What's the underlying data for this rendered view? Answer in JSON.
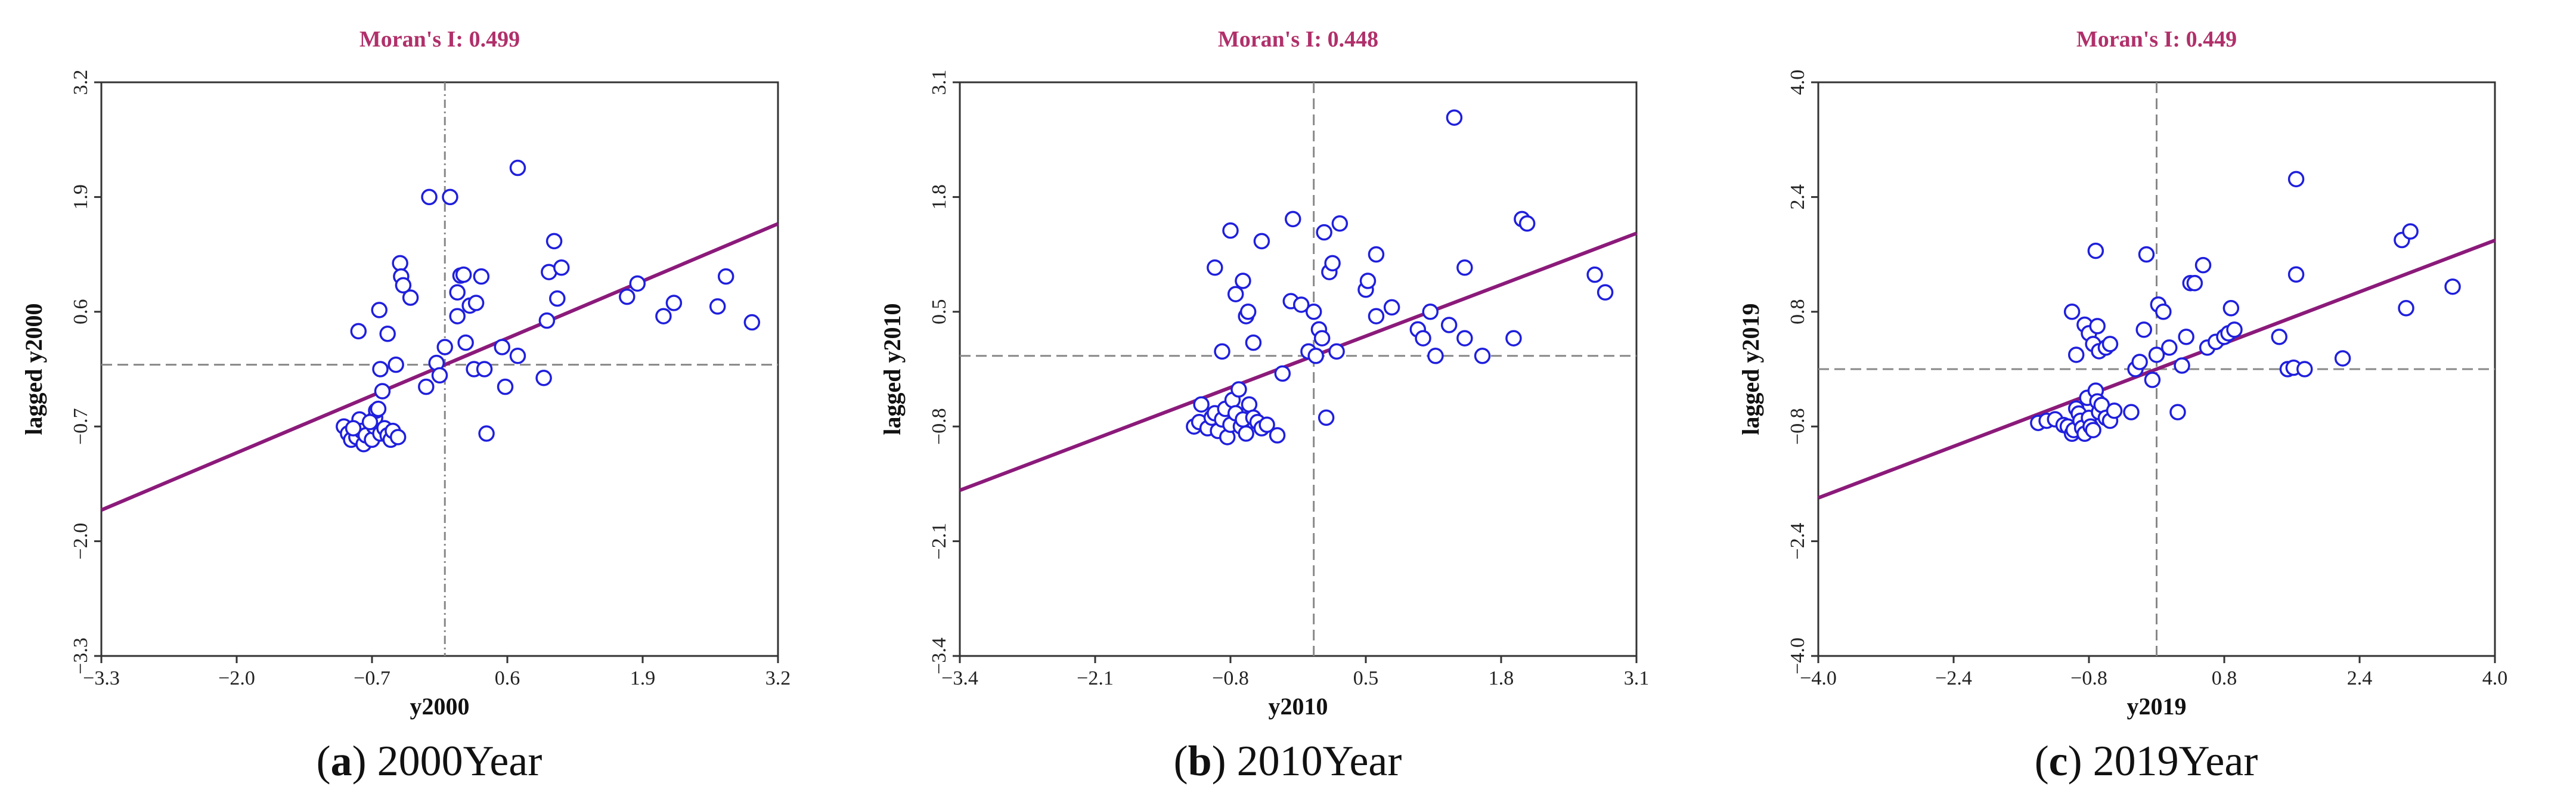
{
  "chart_data": [
    {
      "type": "scatter",
      "panel_tag": "a",
      "panel_title": "2000Year",
      "moran_label": "Moran's I:",
      "moran_value": "0.499",
      "xlabel": "y2000",
      "ylabel": "lagged  y2000",
      "xlim": [
        -3.3,
        3.2
      ],
      "ylim": [
        -3.3,
        3.2
      ],
      "xticks": [
        -3.3,
        -2.0,
        -0.7,
        0.6,
        1.9,
        3.2
      ],
      "yticks": [
        -3.3,
        -2.0,
        -0.7,
        0.6,
        1.9,
        3.2
      ],
      "xtick_labels": [
        "−3.3",
        "−2.0",
        "−0.7",
        "0.6",
        "1.9",
        "3.2"
      ],
      "ytick_labels": [
        "−3.3",
        "−2.0",
        "−0.7",
        "0.6",
        "1.9",
        "3.2"
      ],
      "mean_x": 0.0,
      "mean_y": 0.0,
      "fit": {
        "slope": 0.499,
        "intercept": 0.0
      },
      "colors": {
        "points": "#1f1fdd",
        "fit": "#8b1a7a",
        "ref": "#888888"
      },
      "points": [
        [
          -0.97,
          -0.7
        ],
        [
          -0.93,
          -0.78
        ],
        [
          -0.9,
          -0.85
        ],
        [
          -0.85,
          -0.82
        ],
        [
          -0.82,
          -0.62
        ],
        [
          -0.8,
          -0.75
        ],
        [
          -0.78,
          -0.9
        ],
        [
          -0.76,
          -0.8
        ],
        [
          -0.7,
          -0.85
        ],
        [
          -0.68,
          -0.7
        ],
        [
          -0.67,
          -0.6
        ],
        [
          -0.66,
          -0.52
        ],
        [
          -0.64,
          -0.5
        ],
        [
          -0.62,
          -0.78
        ],
        [
          -0.58,
          -0.72
        ],
        [
          -0.55,
          -0.8
        ],
        [
          -0.52,
          -0.85
        ],
        [
          -0.5,
          -0.75
        ],
        [
          -0.45,
          -0.82
        ],
        [
          -0.88,
          -0.72
        ],
        [
          -0.72,
          -0.65
        ],
        [
          -0.6,
          -0.3
        ],
        [
          -0.62,
          -0.05
        ],
        [
          -0.47,
          0.0
        ],
        [
          -0.83,
          0.38
        ],
        [
          -0.63,
          0.62
        ],
        [
          -0.55,
          0.35
        ],
        [
          -0.43,
          1.15
        ],
        [
          -0.42,
          1.0
        ],
        [
          -0.4,
          0.9
        ],
        [
          -0.33,
          0.76
        ],
        [
          -0.18,
          -0.25
        ],
        [
          -0.08,
          0.02
        ],
        [
          -0.05,
          -0.12
        ],
        [
          0.0,
          0.2
        ],
        [
          0.05,
          1.9
        ],
        [
          -0.15,
          1.9
        ],
        [
          0.12,
          0.82
        ],
        [
          0.15,
          1.01
        ],
        [
          0.18,
          1.02
        ],
        [
          0.2,
          0.25
        ],
        [
          0.24,
          0.67
        ],
        [
          0.28,
          -0.05
        ],
        [
          0.3,
          0.7
        ],
        [
          0.35,
          1.0
        ],
        [
          0.38,
          -0.05
        ],
        [
          0.4,
          -0.78
        ],
        [
          0.12,
          0.55
        ],
        [
          0.55,
          0.2
        ],
        [
          0.58,
          -0.25
        ],
        [
          0.7,
          2.23
        ],
        [
          0.7,
          0.1
        ],
        [
          0.95,
          -0.15
        ],
        [
          0.98,
          0.5
        ],
        [
          1.0,
          1.05
        ],
        [
          1.05,
          1.4
        ],
        [
          1.08,
          0.75
        ],
        [
          1.12,
          1.1
        ],
        [
          1.75,
          0.77
        ],
        [
          1.85,
          0.92
        ],
        [
          2.1,
          0.55
        ],
        [
          2.2,
          0.7
        ],
        [
          2.62,
          0.66
        ],
        [
          2.7,
          1.0
        ],
        [
          2.95,
          0.48
        ]
      ]
    },
    {
      "type": "scatter",
      "panel_tag": "b",
      "panel_title": "2010Year",
      "moran_label": "Moran's I:",
      "moran_value": "0.448",
      "xlabel": "y2010",
      "ylabel": "lagged  y2010",
      "xlim": [
        -3.4,
        3.1
      ],
      "ylim": [
        -3.4,
        3.1
      ],
      "xticks": [
        -3.4,
        -2.1,
        -0.8,
        0.5,
        1.8,
        3.1
      ],
      "yticks": [
        -3.4,
        -2.1,
        -0.8,
        0.5,
        1.8,
        3.1
      ],
      "xtick_labels": [
        "−3.4",
        "−2.1",
        "−0.8",
        "0.5",
        "1.8",
        "3.1"
      ],
      "ytick_labels": [
        "−3.4",
        "−2.1",
        "−0.8",
        "0.5",
        "1.8",
        "3.1"
      ],
      "mean_x": 0.0,
      "mean_y": 0.0,
      "fit": {
        "slope": 0.448,
        "intercept": 0.0
      },
      "colors": {
        "points": "#1f1fdd",
        "fit": "#8b1a7a",
        "ref": "#888888"
      },
      "points": [
        [
          -1.15,
          -0.8
        ],
        [
          -1.1,
          -0.75
        ],
        [
          -1.08,
          -0.55
        ],
        [
          -1.02,
          -0.82
        ],
        [
          -0.98,
          -0.7
        ],
        [
          -0.95,
          -0.65
        ],
        [
          -0.92,
          -0.85
        ],
        [
          -0.88,
          -0.72
        ],
        [
          -0.85,
          -0.6
        ],
        [
          -0.83,
          -0.92
        ],
        [
          -0.8,
          -0.78
        ],
        [
          -0.78,
          -0.5
        ],
        [
          -0.75,
          -0.65
        ],
        [
          -0.72,
          -0.38
        ],
        [
          -0.7,
          -0.8
        ],
        [
          -0.68,
          -0.72
        ],
        [
          -0.65,
          -0.88
        ],
        [
          -0.62,
          -0.55
        ],
        [
          -0.58,
          -0.7
        ],
        [
          -0.54,
          -0.75
        ],
        [
          -0.5,
          -0.82
        ],
        [
          -0.45,
          -0.78
        ],
        [
          -0.35,
          -0.9
        ],
        [
          -0.3,
          -0.2
        ],
        [
          -0.22,
          0.62
        ],
        [
          -0.95,
          1.0
        ],
        [
          -0.88,
          0.05
        ],
        [
          -0.8,
          1.42
        ],
        [
          -0.75,
          0.7
        ],
        [
          -0.68,
          0.85
        ],
        [
          -0.65,
          0.45
        ],
        [
          -0.63,
          0.5
        ],
        [
          -0.58,
          0.15
        ],
        [
          -0.5,
          1.3
        ],
        [
          -0.2,
          1.55
        ],
        [
          -0.12,
          0.58
        ],
        [
          -0.05,
          0.05
        ],
        [
          0.0,
          0.5
        ],
        [
          0.02,
          0.0
        ],
        [
          0.05,
          0.3
        ],
        [
          0.08,
          0.2
        ],
        [
          0.1,
          1.4
        ],
        [
          0.15,
          0.95
        ],
        [
          0.18,
          1.05
        ],
        [
          0.22,
          0.05
        ],
        [
          0.25,
          1.5
        ],
        [
          0.12,
          -0.7
        ],
        [
          0.5,
          0.75
        ],
        [
          0.52,
          0.85
        ],
        [
          0.6,
          1.15
        ],
        [
          0.6,
          0.45
        ],
        [
          0.75,
          0.55
        ],
        [
          1.0,
          0.3
        ],
        [
          1.05,
          0.2
        ],
        [
          1.12,
          0.5
        ],
        [
          1.17,
          0.0
        ],
        [
          1.3,
          0.35
        ],
        [
          1.35,
          2.7
        ],
        [
          1.45,
          1.0
        ],
        [
          1.45,
          0.2
        ],
        [
          1.62,
          0.0
        ],
        [
          1.92,
          0.2
        ],
        [
          2.0,
          1.55
        ],
        [
          2.05,
          1.5
        ],
        [
          2.7,
          0.92
        ],
        [
          2.8,
          0.72
        ]
      ]
    },
    {
      "type": "scatter",
      "panel_tag": "c",
      "panel_title": "2019Year",
      "moran_label": "Moran's I:",
      "moran_value": "0.449",
      "xlabel": "y2019",
      "ylabel": "lagged  y2019",
      "xlim": [
        -4.0,
        4.0
      ],
      "ylim": [
        -4.0,
        4.0
      ],
      "xticks": [
        -4.0,
        -2.4,
        -0.8,
        0.8,
        2.4,
        4.0
      ],
      "yticks": [
        -4.0,
        -2.4,
        -0.8,
        0.8,
        2.4,
        4.0
      ],
      "xtick_labels": [
        "−4.0",
        "−2.4",
        "−0.8",
        "0.8",
        "2.4",
        "4.0"
      ],
      "ytick_labels": [
        "−4.0",
        "−2.4",
        "−0.8",
        "0.8",
        "2.4",
        "4.0"
      ],
      "mean_x": 0.0,
      "mean_y": 0.0,
      "fit": {
        "slope": 0.449,
        "intercept": 0.0
      },
      "colors": {
        "points": "#1f1fdd",
        "fit": "#8b1a7a",
        "ref": "#888888"
      },
      "points": [
        [
          -1.4,
          -0.75
        ],
        [
          -1.3,
          -0.72
        ],
        [
          -1.2,
          -0.7
        ],
        [
          -1.1,
          -0.78
        ],
        [
          -1.05,
          -0.8
        ],
        [
          -1.0,
          -0.9
        ],
        [
          -0.98,
          -0.85
        ],
        [
          -0.95,
          -0.55
        ],
        [
          -0.92,
          -0.62
        ],
        [
          -0.9,
          -0.72
        ],
        [
          -0.88,
          -0.82
        ],
        [
          -0.85,
          -0.9
        ],
        [
          -0.82,
          -0.4
        ],
        [
          -0.8,
          -0.68
        ],
        [
          -0.78,
          -0.8
        ],
        [
          -0.75,
          -0.85
        ],
        [
          -0.72,
          -0.3
        ],
        [
          -0.7,
          -0.45
        ],
        [
          -0.68,
          -0.6
        ],
        [
          -0.65,
          -0.5
        ],
        [
          -0.6,
          -0.68
        ],
        [
          -0.55,
          -0.72
        ],
        [
          -0.5,
          -0.58
        ],
        [
          -0.3,
          -0.6
        ],
        [
          -1.0,
          0.8
        ],
        [
          -0.95,
          0.2
        ],
        [
          -0.85,
          0.62
        ],
        [
          -0.8,
          0.5
        ],
        [
          -0.75,
          0.35
        ],
        [
          -0.72,
          1.65
        ],
        [
          -0.7,
          0.6
        ],
        [
          -0.68,
          0.25
        ],
        [
          -0.6,
          0.3
        ],
        [
          -0.55,
          0.35
        ],
        [
          -0.25,
          0.0
        ],
        [
          -0.2,
          0.1
        ],
        [
          -0.15,
          0.55
        ],
        [
          -0.12,
          1.6
        ],
        [
          -0.05,
          -0.15
        ],
        [
          0.0,
          0.2
        ],
        [
          0.02,
          0.9
        ],
        [
          0.08,
          0.8
        ],
        [
          0.15,
          0.3
        ],
        [
          0.25,
          -0.6
        ],
        [
          0.3,
          0.05
        ],
        [
          0.35,
          0.45
        ],
        [
          0.4,
          1.2
        ],
        [
          0.45,
          1.2
        ],
        [
          0.55,
          1.45
        ],
        [
          0.6,
          0.3
        ],
        [
          0.7,
          0.38
        ],
        [
          0.8,
          0.45
        ],
        [
          0.85,
          0.5
        ],
        [
          0.88,
          0.85
        ],
        [
          0.92,
          0.55
        ],
        [
          1.45,
          0.45
        ],
        [
          1.55,
          0.0
        ],
        [
          1.62,
          0.02
        ],
        [
          1.65,
          1.32
        ],
        [
          1.65,
          2.65
        ],
        [
          1.75,
          0.0
        ],
        [
          2.2,
          0.15
        ],
        [
          2.9,
          1.8
        ],
        [
          2.95,
          0.85
        ],
        [
          3.0,
          1.92
        ],
        [
          3.5,
          1.15
        ]
      ]
    }
  ]
}
